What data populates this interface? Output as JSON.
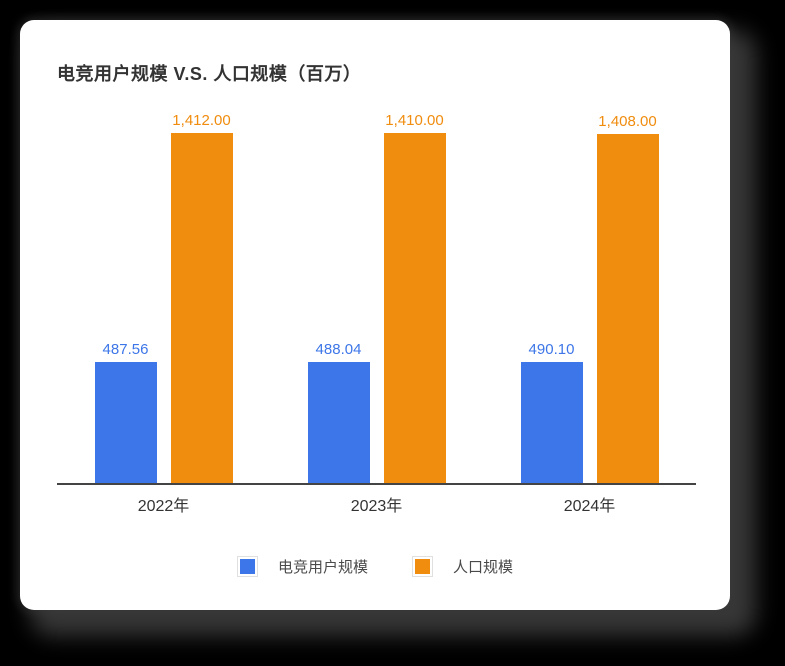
{
  "chart_data": {
    "type": "bar",
    "title": "电竞用户规模 V.S. 人口规模（百万）",
    "categories": [
      "2022年",
      "2023年",
      "2024年"
    ],
    "series": [
      {
        "name": "电竞用户规模",
        "color": "#3D76E8",
        "values": [
          487.56,
          488.04,
          490.1
        ],
        "value_labels": [
          "487.56",
          "488.04",
          "490.10"
        ]
      },
      {
        "name": "人口规模",
        "color": "#F08C0E",
        "values": [
          1412.0,
          1410.0,
          1408.0
        ],
        "value_labels": [
          "1,412.00",
          "1,410.00",
          "1,408.00"
        ]
      }
    ],
    "xlabel": "",
    "ylabel": "",
    "ylim": [
      0,
      1412
    ],
    "grid": false,
    "y_axis_shown": false,
    "value_labels_shown": true,
    "legend_position": "bottom",
    "axis_line_color": "#444444",
    "text_color": "#333333",
    "card_background": "#ffffff",
    "page_background": "#000000"
  }
}
